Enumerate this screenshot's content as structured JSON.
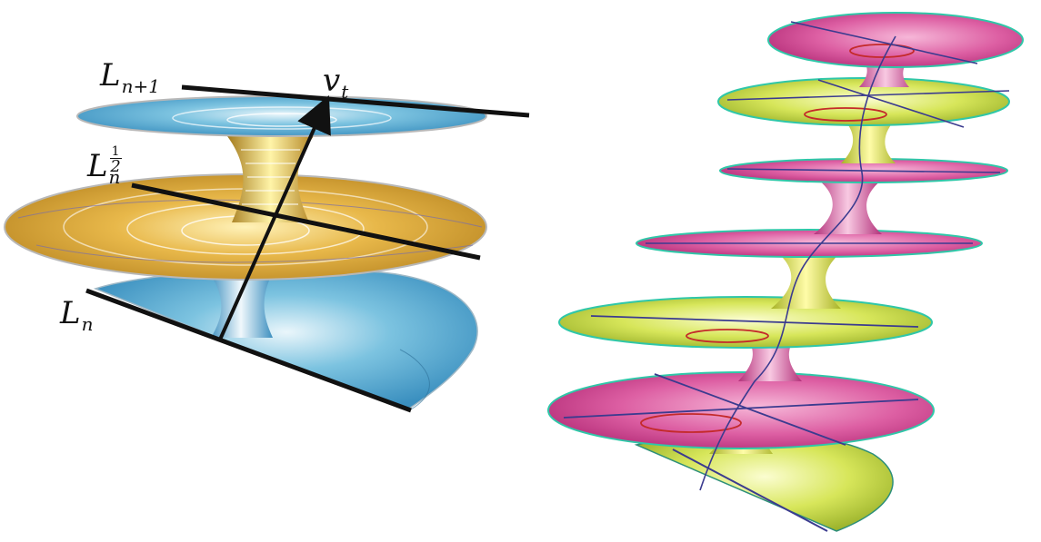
{
  "labels": {
    "l_n1": {
      "base": "L",
      "sub": "n+1"
    },
    "l_half": {
      "base": "L",
      "num": "1",
      "den": "2",
      "sub": "n"
    },
    "l_n": {
      "base": "L",
      "sub": "n"
    },
    "v_t": {
      "base": "v",
      "sub": "t"
    }
  },
  "colors": {
    "left_blue": "#4aa6d0",
    "left_gold": "#d8a536",
    "right_magenta": "#d84f9a",
    "right_yellow": "#cfe04a",
    "right_rim": "#2fc7a8",
    "line_black": "#111111"
  }
}
